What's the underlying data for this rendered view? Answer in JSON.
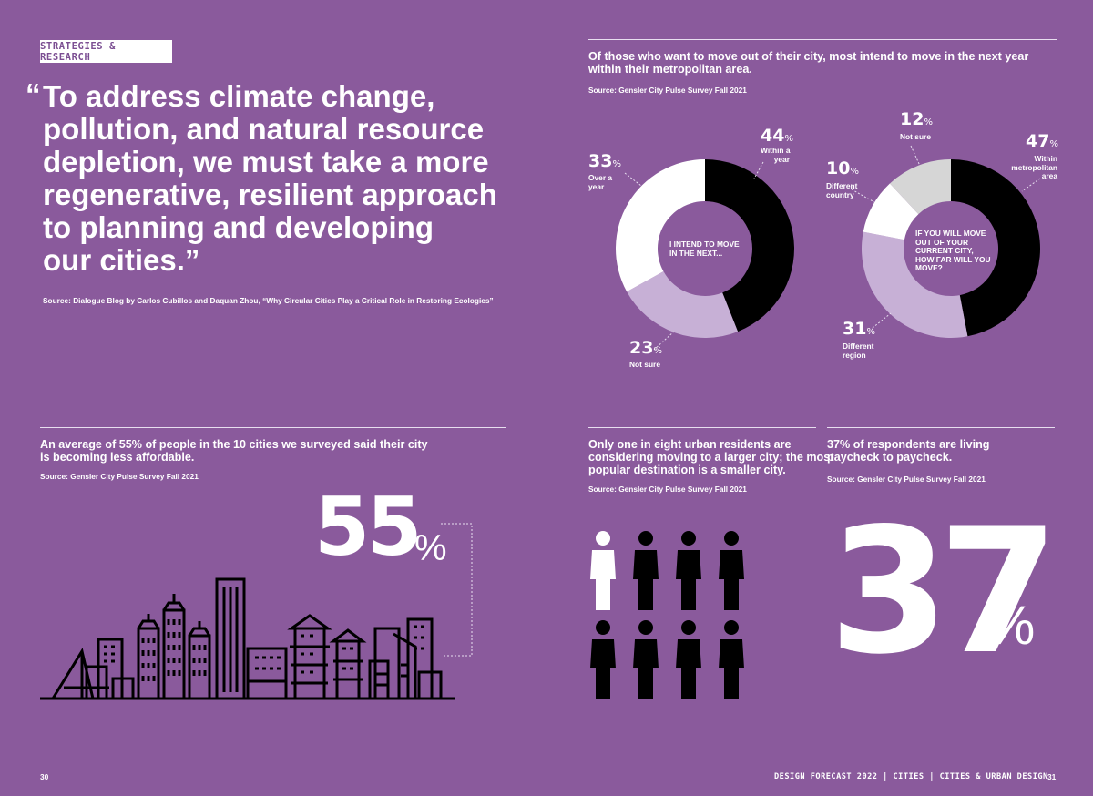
{
  "section_tag": "STRATEGIES & RESEARCH",
  "quote": {
    "open_mark": "“",
    "lines": [
      "To address climate change,",
      "pollution, and natural resource",
      "depletion, we must take a more",
      "regenerative, resilient approach",
      "to planning and developing",
      "our cities.”"
    ],
    "source": "Source: Dialogue Blog by Carlos Cubillos and Daquan Zhou, “Why Circular Cities Play a Critical Role in Restoring Ecologies”"
  },
  "move_section": {
    "heading_lines": [
      "Of those who want to move out of their city, most intend to move in the next year",
      "within their metropolitan area."
    ],
    "source": "Source: Gensler City Pulse Survey Fall 2021"
  },
  "chart_data": [
    {
      "type": "pie",
      "center_label": [
        "I INTEND TO MOVE",
        "IN THE NEXT..."
      ],
      "slices": [
        {
          "label": "Within a year",
          "value": 44,
          "color": "#000000"
        },
        {
          "label": "Not sure",
          "value": 23,
          "color": "#c7b0d6"
        },
        {
          "label": "Over a year",
          "value": 33,
          "color": "#ffffff"
        }
      ]
    },
    {
      "type": "pie",
      "center_label": [
        "IF YOU WILL MOVE",
        "OUT OF YOUR",
        "CURRENT CITY,",
        "HOW FAR WILL YOU",
        "MOVE?"
      ],
      "slices": [
        {
          "label": "Within metropolitan area",
          "value": 47,
          "color": "#000000"
        },
        {
          "label": "Different region",
          "value": 31,
          "color": "#c7b0d6"
        },
        {
          "label": "Different country",
          "value": 10,
          "color": "#ffffff"
        },
        {
          "label": "Not sure",
          "value": 12,
          "color": "#d6d6d6"
        }
      ]
    }
  ],
  "donut_labels": {
    "d1_44": {
      "num": "44",
      "text": [
        "Within a",
        "year"
      ]
    },
    "d1_33": {
      "num": "33",
      "text": [
        "Over a",
        "year"
      ]
    },
    "d1_23": {
      "num": "23",
      "text": [
        "Not sure"
      ]
    },
    "d2_12": {
      "num": "12",
      "text": [
        "Not sure"
      ]
    },
    "d2_47": {
      "num": "47",
      "text": [
        "Within",
        "metropolitan",
        "area"
      ]
    },
    "d2_10": {
      "num": "10",
      "text": [
        "Different",
        "country"
      ]
    },
    "d2_31": {
      "num": "31",
      "text": [
        "Different",
        "region"
      ]
    },
    "percent_sign": "%"
  },
  "affordable": {
    "heading_lines": [
      "An average of 55% of people in the 10 cities we surveyed said their city",
      "is becoming less affordable."
    ],
    "source": "Source: Gensler City Pulse Survey Fall 2021",
    "big_number": "55",
    "big_pct": "%",
    "skyline_icon": "city-skyline-icon"
  },
  "eight": {
    "heading_lines": [
      "Only one in eight urban residents are",
      "considering moving to a larger city; the most",
      "popular destination is a smaller city."
    ],
    "source": "Source: Gensler City Pulse Survey Fall 2021",
    "highlighted": 1,
    "total": 8,
    "icon": "person-icon",
    "highlight_color": "#ffffff",
    "base_color": "#000000"
  },
  "paycheck": {
    "heading_lines": [
      "37% of respondents are living",
      "paycheck to paycheck."
    ],
    "source": "Source: Gensler City Pulse Survey Fall 2021",
    "big_number": "37",
    "big_pct": "%"
  },
  "footer": {
    "page_left": "30",
    "page_right": "31",
    "running_head": "DESIGN FORECAST 2022 | CITIES | CITIES & URBAN DESIGN"
  }
}
